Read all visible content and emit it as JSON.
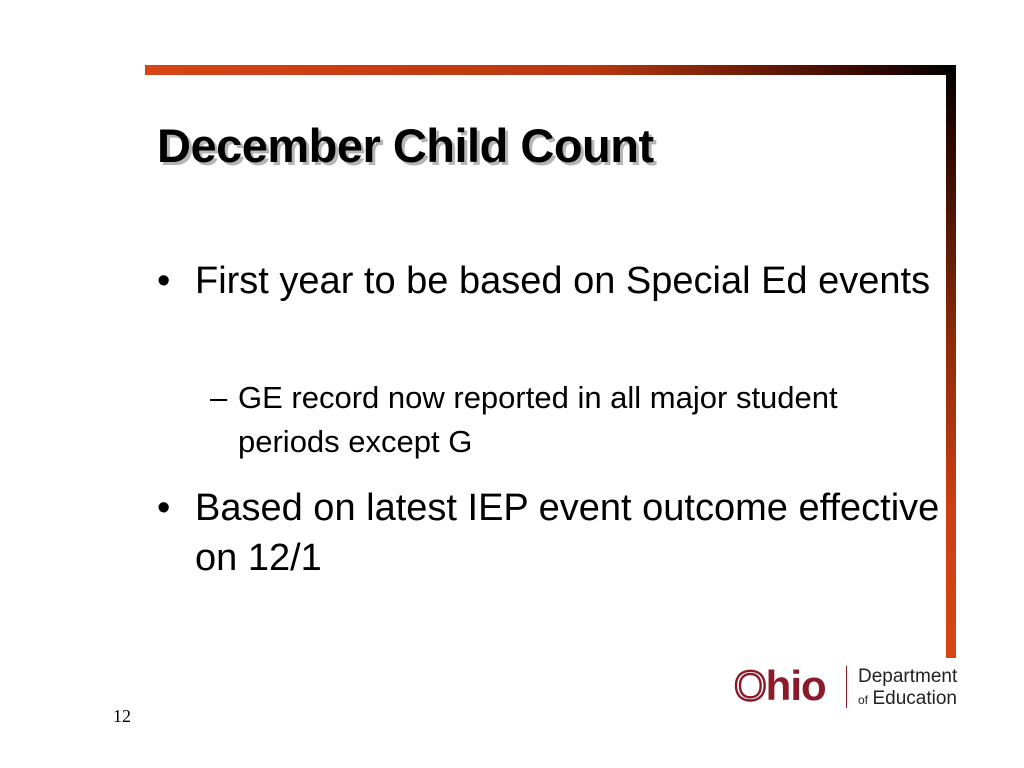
{
  "slide": {
    "title": "December Child Count",
    "bullets": [
      {
        "marker": "•",
        "text": "First year to be based on Special Ed events"
      },
      {
        "marker": "–",
        "text": "GE record now reported in all major student periods except G"
      },
      {
        "marker": "•",
        "text": "Based on latest IEP event outcome effective on 12/1"
      }
    ],
    "page_number": "12"
  },
  "logo": {
    "ohio_first": "O",
    "ohio_rest": "hio",
    "line1": "Department",
    "line2_small": "of",
    "line2": "Education"
  },
  "colors": {
    "accent_rule": "#d64515",
    "logo": "#8b1a2b",
    "title_shadow": "#b5b5b5"
  }
}
